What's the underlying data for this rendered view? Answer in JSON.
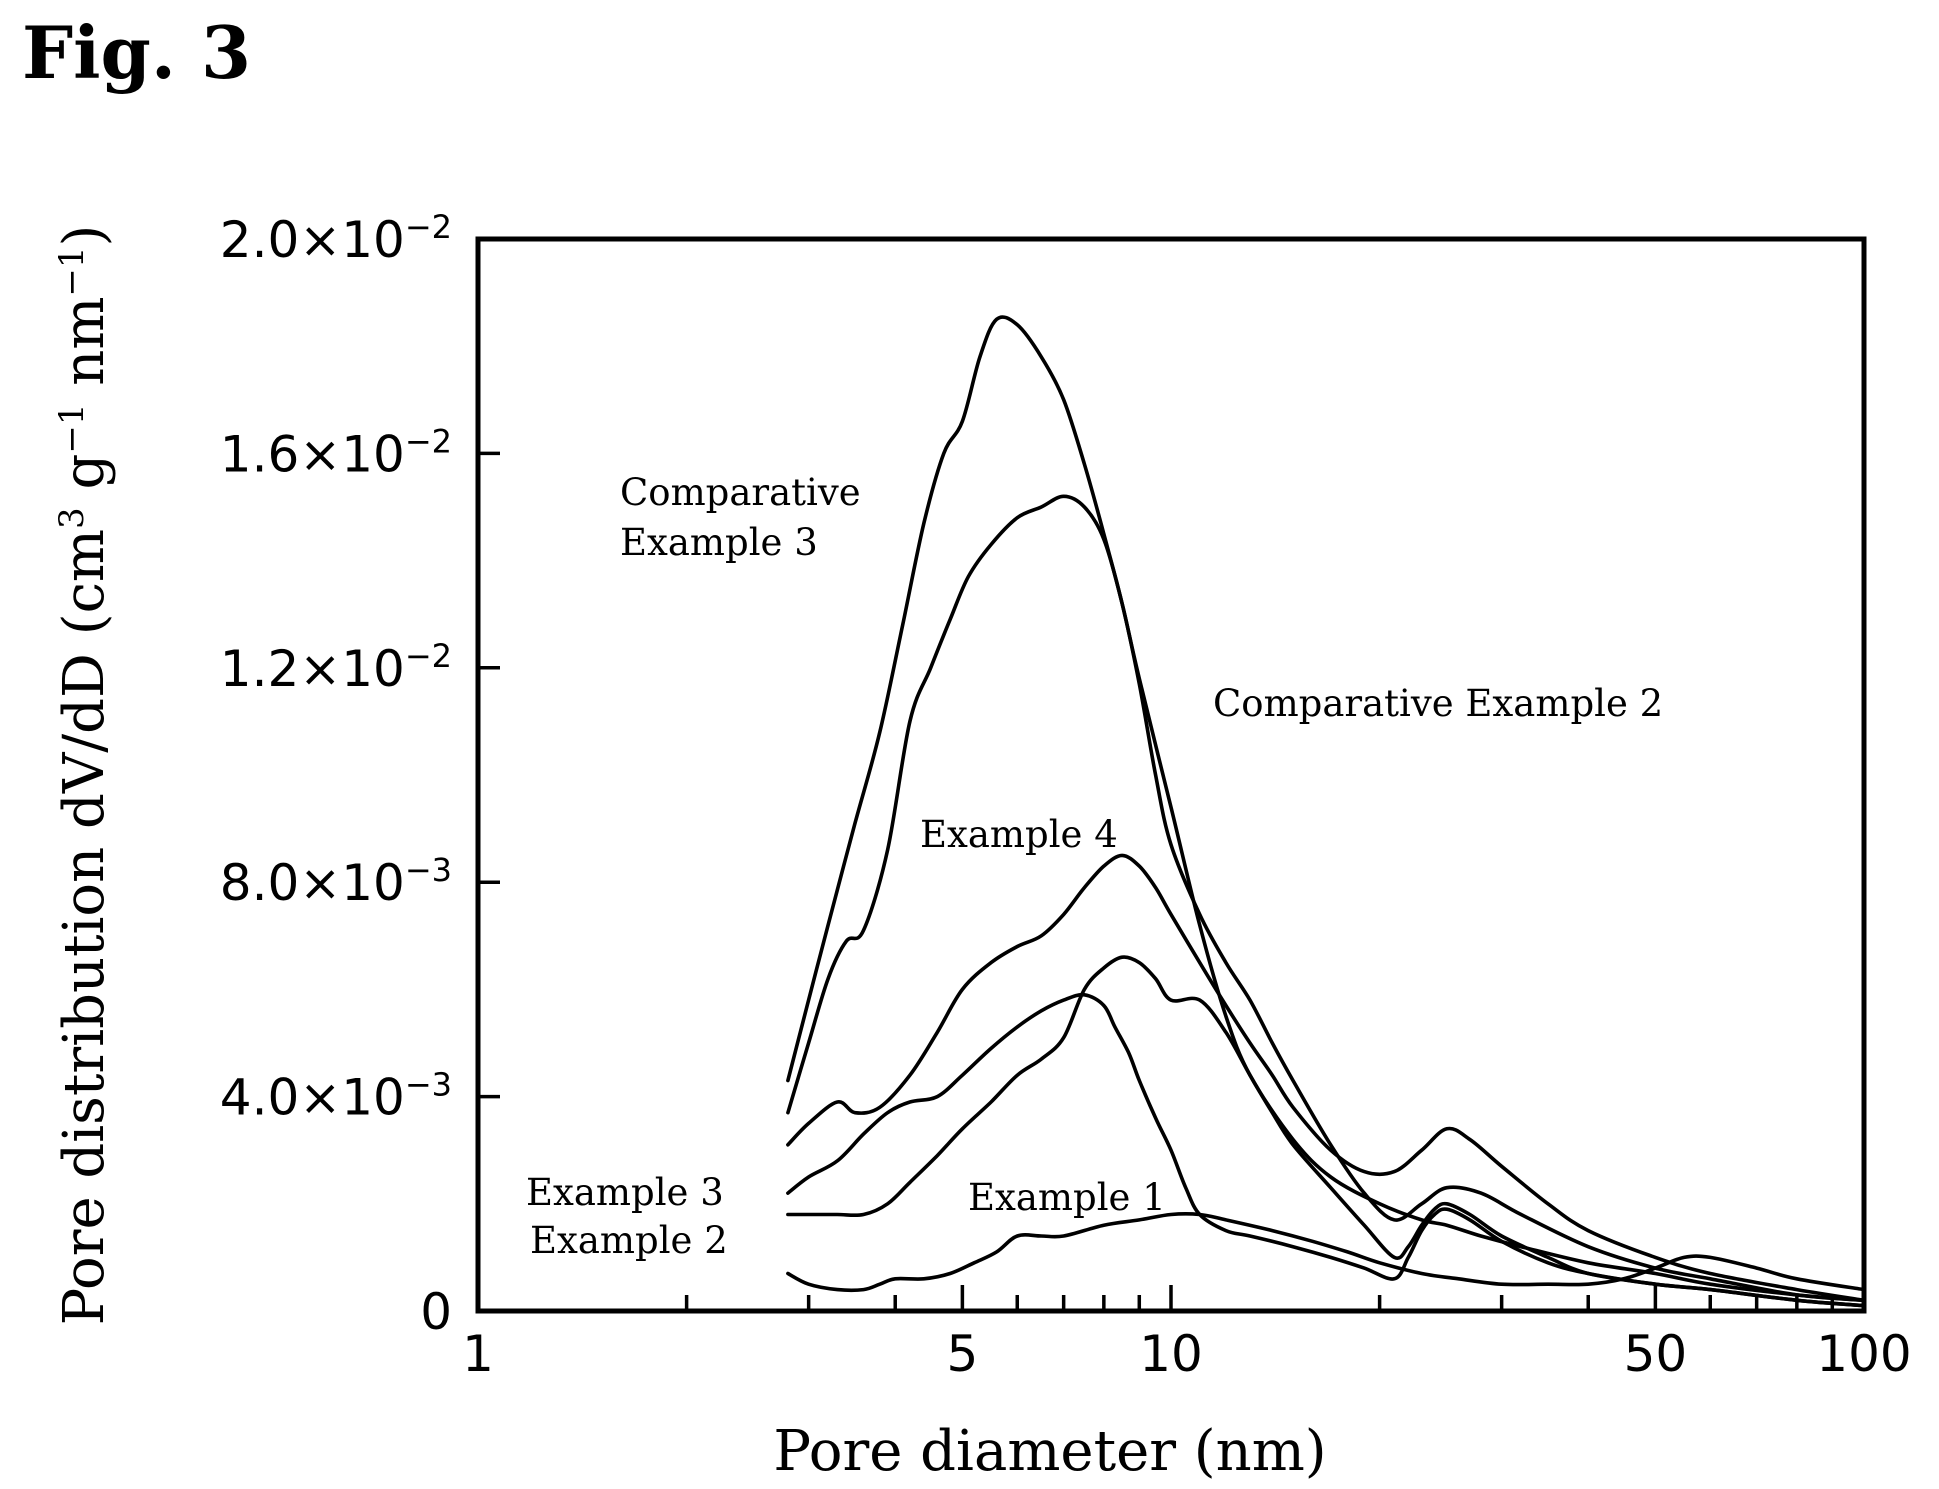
{
  "figure_label": "Fig. 3",
  "chart_data": {
    "type": "line",
    "xlabel": "Pore diameter (nm)",
    "ylabel": "Pore distribution dV/dD (cm3 g−1 nm−1)",
    "ylabel_parts": {
      "main": "Pore distribution dV/dD (cm",
      "sup1": "3",
      "mid1": " g",
      "sup2": "−1",
      "mid2": " nm",
      "sup3": "−1",
      "end": ")"
    },
    "x_scale": "log",
    "xlim": [
      1,
      100
    ],
    "ylim": [
      0,
      0.02
    ],
    "grid": false,
    "x_tick_labels": [
      {
        "value": 1,
        "label": "1"
      },
      {
        "value": 5,
        "label": "5"
      },
      {
        "value": 10,
        "label": "10"
      },
      {
        "value": 50,
        "label": "50"
      },
      {
        "value": 100,
        "label": "100"
      }
    ],
    "y_tick_labels": [
      {
        "value": 0,
        "label": "0",
        "mantissa": "",
        "exp": ""
      },
      {
        "value": 0.004,
        "label": "4.0×10−3",
        "mantissa": "4.0×10",
        "exp": "−3"
      },
      {
        "value": 0.008,
        "label": "8.0×10−3",
        "mantissa": "8.0×10",
        "exp": "−3"
      },
      {
        "value": 0.012,
        "label": "1.2×10−2",
        "mantissa": "1.2×10",
        "exp": "−2"
      },
      {
        "value": 0.016,
        "label": "1.6×10−2",
        "mantissa": "1.6×10",
        "exp": "−2"
      },
      {
        "value": 0.02,
        "label": "2.0×10−2",
        "mantissa": "2.0×10",
        "exp": "−2"
      }
    ],
    "series": [
      {
        "name": "Comparative Example 3",
        "label_lines": [
          "Comparative",
          "Example 3"
        ],
        "x": [
          2.8,
          3.0,
          3.2,
          3.5,
          3.8,
          4.1,
          4.4,
          4.7,
          5.0,
          5.3,
          5.6,
          6.0,
          6.5,
          7.0,
          7.5,
          8.0,
          8.5,
          9.0,
          10.0,
          11.0,
          12.0,
          13.0,
          15.0,
          17.0,
          20.0,
          23.0,
          25.0,
          28.0,
          32.0,
          40.0,
          50.0,
          60.0,
          80.0,
          100.0
        ],
        "y": [
          0.0043,
          0.0058,
          0.0072,
          0.0091,
          0.0108,
          0.0128,
          0.0147,
          0.016,
          0.0166,
          0.0178,
          0.0185,
          0.0184,
          0.0178,
          0.017,
          0.0158,
          0.0145,
          0.0132,
          0.0118,
          0.0094,
          0.0072,
          0.0055,
          0.0044,
          0.0032,
          0.0025,
          0.002,
          0.0017,
          0.0016,
          0.0014,
          0.0012,
          0.0009,
          0.0007,
          0.0005,
          0.0003,
          0.0002
        ]
      },
      {
        "name": "Comparative Example 2",
        "label_lines": [
          "Comparative Example 2"
        ],
        "x": [
          2.8,
          3.0,
          3.2,
          3.4,
          3.6,
          3.9,
          4.2,
          4.5,
          4.8,
          5.1,
          5.5,
          6.0,
          6.5,
          7.0,
          7.5,
          8.0,
          8.5,
          9.0,
          9.5,
          10.0,
          11.0,
          12.0,
          13.0,
          14.0,
          15.0,
          17.0,
          19.0,
          21.0,
          23.0,
          25.0,
          28.0,
          32.0,
          40.0,
          50.0,
          60.0,
          80.0,
          100.0
        ],
        "y": [
          0.0037,
          0.005,
          0.0062,
          0.0069,
          0.0071,
          0.0086,
          0.011,
          0.012,
          0.0129,
          0.0137,
          0.0143,
          0.0148,
          0.015,
          0.0152,
          0.015,
          0.0144,
          0.0132,
          0.0117,
          0.01,
          0.0087,
          0.0074,
          0.0065,
          0.0058,
          0.005,
          0.0043,
          0.0031,
          0.0022,
          0.0017,
          0.002,
          0.0023,
          0.0022,
          0.0018,
          0.0012,
          0.0008,
          0.0006,
          0.0003,
          0.0002
        ]
      },
      {
        "name": "Example 4",
        "label_lines": [
          "Example 4"
        ],
        "x": [
          2.8,
          3.0,
          3.3,
          3.5,
          3.8,
          4.2,
          4.6,
          5.0,
          5.5,
          6.0,
          6.5,
          7.0,
          7.5,
          8.0,
          8.5,
          9.0,
          9.5,
          10.0,
          11.0,
          12.0,
          13.0,
          14.0,
          15.0,
          17.0,
          19.0,
          21.0,
          23.0,
          25.0,
          27.0,
          30.0,
          35.0,
          40.0,
          50.0,
          60.0,
          80.0,
          100.0
        ],
        "y": [
          0.0031,
          0.0035,
          0.0039,
          0.0037,
          0.0038,
          0.0044,
          0.0052,
          0.006,
          0.0065,
          0.0068,
          0.007,
          0.0074,
          0.0079,
          0.0083,
          0.0085,
          0.0083,
          0.0079,
          0.0074,
          0.0065,
          0.0057,
          0.005,
          0.0044,
          0.0038,
          0.003,
          0.0026,
          0.0026,
          0.003,
          0.0034,
          0.0032,
          0.0027,
          0.002,
          0.0015,
          0.001,
          0.0007,
          0.0004,
          0.0002
        ]
      },
      {
        "name": "Example 3",
        "label_lines": [
          "Example 3"
        ],
        "x": [
          2.8,
          3.0,
          3.3,
          3.6,
          3.9,
          4.2,
          4.6,
          5.0,
          5.5,
          6.0,
          6.5,
          7.0,
          7.5,
          8.0,
          8.3,
          8.7,
          9.0,
          9.5,
          10.0,
          10.5,
          11.0,
          12.0,
          13.0,
          15.0,
          17.0,
          19.0,
          21.0,
          22.0,
          23.0,
          24.0,
          25.0,
          27.0,
          30.0,
          35.0,
          40.0,
          50.0,
          60.0,
          80.0,
          100.0
        ],
        "y": [
          0.0022,
          0.0025,
          0.0028,
          0.0033,
          0.0037,
          0.0039,
          0.004,
          0.0044,
          0.0049,
          0.0053,
          0.0056,
          0.0058,
          0.0059,
          0.0057,
          0.0053,
          0.0048,
          0.0043,
          0.0036,
          0.003,
          0.0023,
          0.0018,
          0.0015,
          0.0014,
          0.0012,
          0.001,
          0.0008,
          0.0006,
          0.001,
          0.0015,
          0.0018,
          0.0019,
          0.0017,
          0.0013,
          0.0009,
          0.0007,
          0.0005,
          0.0004,
          0.0002,
          0.0001
        ]
      },
      {
        "name": "Example 2",
        "label_lines": [
          "Example 2"
        ],
        "x": [
          2.8,
          3.0,
          3.3,
          3.6,
          3.9,
          4.2,
          4.6,
          5.0,
          5.5,
          6.0,
          6.5,
          7.0,
          7.5,
          8.0,
          8.5,
          9.0,
          9.5,
          10.0,
          11.0,
          12.0,
          13.0,
          14.0,
          15.0,
          17.0,
          19.0,
          21.0,
          22.0,
          23.0,
          24.0,
          25.0,
          27.0,
          30.0,
          35.0,
          40.0,
          50.0,
          60.0,
          80.0,
          100.0
        ],
        "y": [
          0.0018,
          0.0018,
          0.0018,
          0.0018,
          0.002,
          0.0024,
          0.0029,
          0.0034,
          0.0039,
          0.0044,
          0.0047,
          0.0051,
          0.006,
          0.0064,
          0.0066,
          0.0065,
          0.0062,
          0.0058,
          0.0058,
          0.0052,
          0.0044,
          0.0037,
          0.0031,
          0.0023,
          0.0016,
          0.001,
          0.0012,
          0.0016,
          0.0019,
          0.002,
          0.0018,
          0.0014,
          0.001,
          0.0007,
          0.0005,
          0.0004,
          0.0002,
          0.0001
        ]
      },
      {
        "name": "Example 1",
        "label_lines": [
          "Example 1"
        ],
        "x": [
          2.8,
          3.0,
          3.3,
          3.6,
          3.8,
          4.0,
          4.4,
          4.8,
          5.2,
          5.6,
          6.0,
          6.5,
          7.0,
          8.0,
          9.0,
          10.0,
          11.0,
          12.0,
          14.0,
          16.0,
          18.0,
          20.0,
          23.0,
          26.0,
          30.0,
          35.0,
          40.0,
          45.0,
          50.0,
          55.0,
          60.0,
          70.0,
          80.0,
          100.0
        ],
        "y": [
          0.0007,
          0.0005,
          0.0004,
          0.0004,
          0.0005,
          0.0006,
          0.0006,
          0.0007,
          0.0009,
          0.0011,
          0.0014,
          0.0014,
          0.0014,
          0.0016,
          0.0017,
          0.0018,
          0.0018,
          0.0017,
          0.0015,
          0.0013,
          0.0011,
          0.0009,
          0.0007,
          0.0006,
          0.0005,
          0.0005,
          0.0005,
          0.0006,
          0.0008,
          0.001,
          0.001,
          0.0008,
          0.0006,
          0.0004
        ]
      }
    ]
  }
}
